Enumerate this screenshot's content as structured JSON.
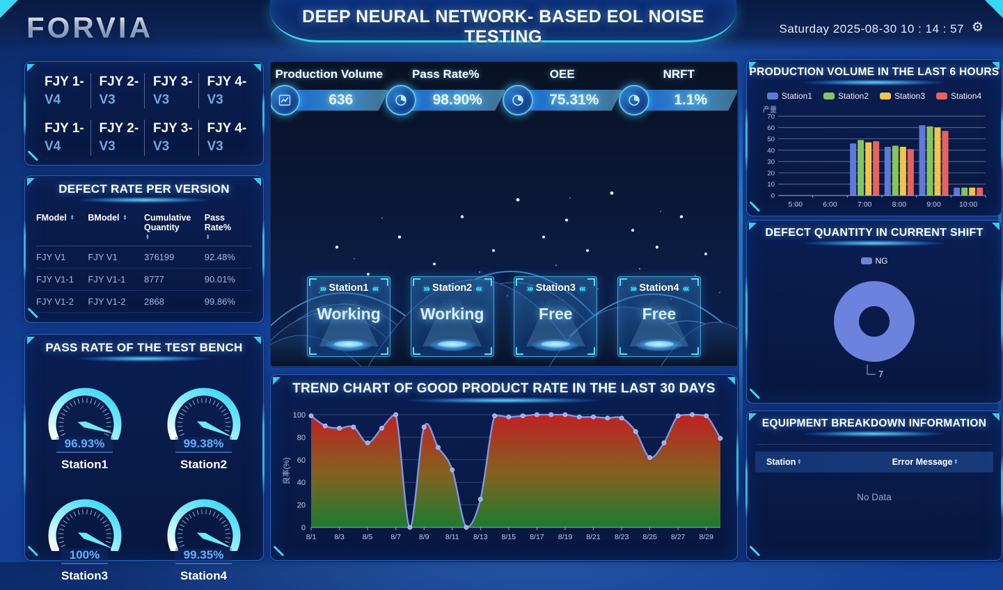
{
  "header": {
    "logo": "FORVIA",
    "title": "DEEP NEURAL NETWORK- BASED EOL NOISE TESTING",
    "datetime": "Saturday 2025-08-30 10 : 14 : 57"
  },
  "colors": {
    "accent_cyan": "#35d8f5",
    "panel_border": "#2b62b8",
    "gauge_arc": "#54e8f8",
    "trend_line": "#7f96e6",
    "donut_ng": "#6c82dc"
  },
  "version_tabs": [
    {
      "model": "FJY 1-",
      "version": "V4"
    },
    {
      "model": "FJY 2-",
      "version": "V3"
    },
    {
      "model": "FJY 3-",
      "version": "V3"
    },
    {
      "model": "FJY 4-",
      "version": "V3"
    },
    {
      "model": "FJY 1-",
      "version": "V4"
    },
    {
      "model": "FJY 2-",
      "version": "V3"
    },
    {
      "model": "FJY 3-",
      "version": "V3"
    },
    {
      "model": "FJY 4-",
      "version": "V3"
    }
  ],
  "defect_table": {
    "title": "DEFECT RATE PER VERSION",
    "columns": [
      "FModel",
      "BModel",
      "Cumulative Quantity",
      "Pass Rate%"
    ],
    "rows": [
      [
        "FJY V1",
        "FJY V1",
        "376199",
        "92.48%"
      ],
      [
        "FJY V1-1",
        "FJY V1-1",
        "8777",
        "90.01%"
      ],
      [
        "FJY V1-2",
        "FJY V1-2",
        "2868",
        "99.86%"
      ]
    ]
  },
  "test_bench": {
    "title": "PASS RATE OF THE TEST BENCH",
    "gauges": [
      {
        "name": "Station1",
        "label": "96.93%",
        "value": 96.93
      },
      {
        "name": "Station2",
        "label": "99.38%",
        "value": 99.38
      },
      {
        "name": "Station3",
        "label": "100%",
        "value": 100
      },
      {
        "name": "Station4",
        "label": "99.35%",
        "value": 99.35
      }
    ]
  },
  "kpis": [
    {
      "label": "Production Volume",
      "value": "636",
      "icon": "line-chart-icon"
    },
    {
      "label": "Pass Rate%",
      "value": "98.90%",
      "icon": "pie-chart-icon"
    },
    {
      "label": "OEE",
      "value": "75.31%",
      "icon": "pie-chart-icon"
    },
    {
      "label": "NRFT",
      "value": "1.1%",
      "icon": "pie-chart-icon"
    }
  ],
  "stations": [
    {
      "name": "Station1",
      "status": "Working"
    },
    {
      "name": "Station2",
      "status": "Working"
    },
    {
      "name": "Station3",
      "status": "Free"
    },
    {
      "name": "Station4",
      "status": "Free"
    }
  ],
  "breakdown": {
    "title": "EQUIPMENT BREAKDOWN INFORMATION",
    "columns": [
      "Station",
      "Error Message"
    ],
    "empty_text": "No Data"
  },
  "chart_data": [
    {
      "id": "good_rate_trend",
      "type": "area",
      "title": "TREND CHART OF GOOD PRODUCT RATE IN THE LAST 30 DAYS",
      "ylabel": "良率(%)",
      "ylim": [
        0,
        100
      ],
      "y_ticks": [
        0,
        20,
        40,
        60,
        80,
        100
      ],
      "x": [
        "8/1",
        "8/2",
        "8/3",
        "8/4",
        "8/5",
        "8/6",
        "8/7",
        "8/8",
        "8/9",
        "8/10",
        "8/11",
        "8/12",
        "8/13",
        "8/14",
        "8/15",
        "8/16",
        "8/17",
        "8/18",
        "8/19",
        "8/20",
        "8/21",
        "8/22",
        "8/23",
        "8/24",
        "8/25",
        "8/26",
        "8/27",
        "8/28",
        "8/29",
        "8/30"
      ],
      "values": [
        99,
        90,
        88,
        89,
        75,
        88,
        100,
        0,
        89,
        71,
        51,
        0,
        25,
        99,
        98,
        99,
        100,
        100,
        100,
        98,
        98,
        97,
        97,
        85,
        62,
        75,
        99,
        100,
        99,
        79
      ],
      "line_color": "#7f96e6",
      "marker_color": "#97aaf0",
      "area_gradient": [
        "#c92121",
        "#8a651e",
        "#1d8030"
      ],
      "grid": true,
      "legend": false
    },
    {
      "id": "production_volume_6h",
      "type": "bar",
      "title": "PRODUCTION VOLUME IN THE LAST 6 HOURS",
      "ylabel": "产量",
      "ylim": [
        0,
        70
      ],
      "y_ticks": [
        0,
        10,
        20,
        30,
        40,
        50,
        60,
        70
      ],
      "categories": [
        "5:00",
        "6:00",
        "7:00",
        "8:00",
        "9:00",
        "10:00"
      ],
      "series": [
        {
          "name": "Station1",
          "color": "#5e79d6",
          "values": [
            0,
            0,
            46,
            43,
            62,
            7
          ]
        },
        {
          "name": "Station2",
          "color": "#84c55e",
          "values": [
            0,
            0,
            49,
            44,
            61,
            7
          ]
        },
        {
          "name": "Station3",
          "color": "#f2c44c",
          "values": [
            0,
            0,
            47,
            43,
            60,
            7
          ]
        },
        {
          "name": "Station4",
          "color": "#e8625e",
          "values": [
            0,
            0,
            48,
            41,
            57,
            7
          ]
        }
      ],
      "legend_position": "top",
      "grid": true
    },
    {
      "id": "defect_donut",
      "type": "pie",
      "title": "DEFECT QUANTITY IN CURRENT SHIFT",
      "donut": true,
      "slices": [
        {
          "name": "NG",
          "value": 7,
          "color": "#6c82dc"
        }
      ],
      "label": "7",
      "legend_position": "top"
    },
    {
      "id": "bench_gauges",
      "type": "gauge",
      "title": "PASS RATE OF THE TEST BENCH",
      "values": [
        96.93,
        99.38,
        100,
        99.35
      ],
      "names": [
        "Station1",
        "Station2",
        "Station3",
        "Station4"
      ]
    }
  ]
}
